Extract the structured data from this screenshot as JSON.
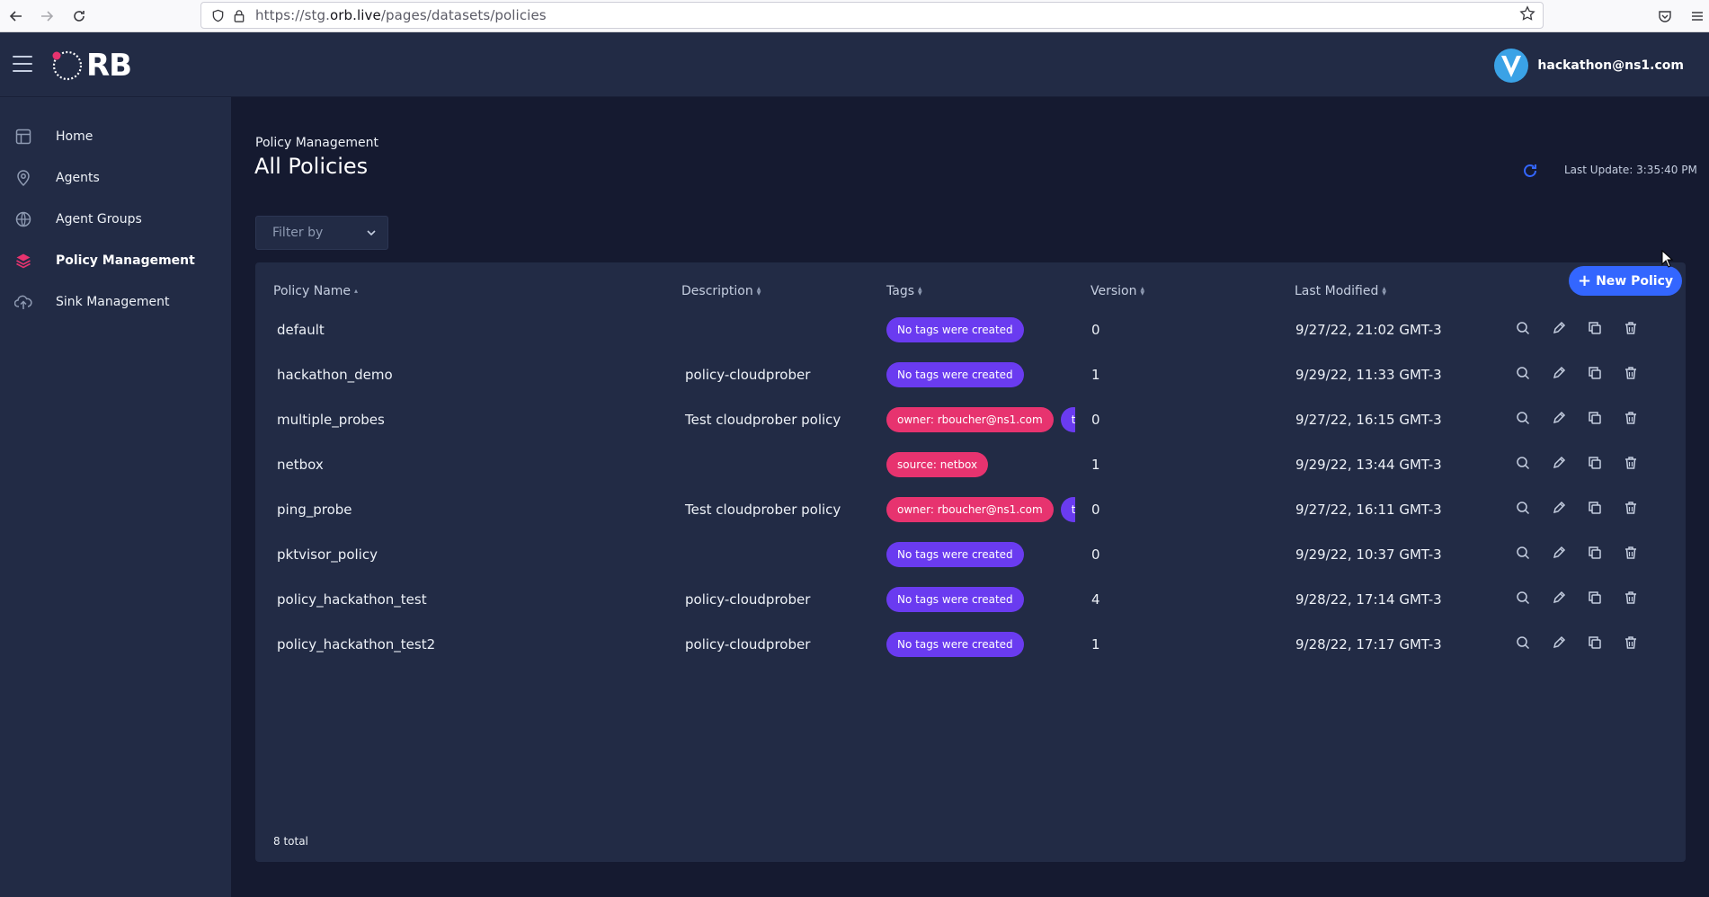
{
  "browser": {
    "url_prefix": "https://stg.",
    "url_host": "orb.live",
    "url_path": "/pages/datasets/policies"
  },
  "header": {
    "logo_text": "RB",
    "user_email": "hackathon@ns1.com"
  },
  "sidebar": {
    "items": [
      {
        "label": "Home",
        "icon": "layout-icon",
        "active": false
      },
      {
        "label": "Agents",
        "icon": "pin-icon",
        "active": false
      },
      {
        "label": "Agent Groups",
        "icon": "globe-icon",
        "active": false
      },
      {
        "label": "Policy Management",
        "icon": "layers-icon",
        "active": true
      },
      {
        "label": "Sink Management",
        "icon": "cloud-upload-icon",
        "active": false
      }
    ]
  },
  "page": {
    "breadcrumb": "Policy Management",
    "title": "All Policies",
    "last_update": "Last Update: 3:35:40 PM",
    "filter_placeholder": "Filter by",
    "new_policy_label": "New Policy",
    "total": "8 total"
  },
  "table": {
    "columns": [
      "Policy Name",
      "Description",
      "Tags",
      "Version",
      "Last Modified"
    ],
    "rows": [
      {
        "name": "default",
        "description": "",
        "tags": [
          {
            "text": "No tags were created",
            "color": "purple"
          }
        ],
        "version": "0",
        "modified": "9/27/22, 21:02 GMT-3"
      },
      {
        "name": "hackathon_demo",
        "description": "policy-cloudprober",
        "tags": [
          {
            "text": "No tags were created",
            "color": "purple"
          }
        ],
        "version": "1",
        "modified": "9/29/22, 11:33 GMT-3"
      },
      {
        "name": "multiple_probes",
        "description": "Test cloudprober policy",
        "tags": [
          {
            "text": "owner: rboucher@ns1.com",
            "color": "pink"
          },
          {
            "text": "t",
            "color": "purple"
          }
        ],
        "version": "0",
        "modified": "9/27/22, 16:15 GMT-3"
      },
      {
        "name": "netbox",
        "description": "",
        "tags": [
          {
            "text": "source: netbox",
            "color": "pink"
          }
        ],
        "version": "1",
        "modified": "9/29/22, 13:44 GMT-3"
      },
      {
        "name": "ping_probe",
        "description": "Test cloudprober policy",
        "tags": [
          {
            "text": "owner: rboucher@ns1.com",
            "color": "pink"
          },
          {
            "text": "t",
            "color": "purple"
          }
        ],
        "version": "0",
        "modified": "9/27/22, 16:11 GMT-3"
      },
      {
        "name": "pktvisor_policy",
        "description": "",
        "tags": [
          {
            "text": "No tags were created",
            "color": "purple"
          }
        ],
        "version": "0",
        "modified": "9/29/22, 10:37 GMT-3"
      },
      {
        "name": "policy_hackathon_test",
        "description": "policy-cloudprober",
        "tags": [
          {
            "text": "No tags were created",
            "color": "purple"
          }
        ],
        "version": "4",
        "modified": "9/28/22, 17:14 GMT-3"
      },
      {
        "name": "policy_hackathon_test2",
        "description": "policy-cloudprober",
        "tags": [
          {
            "text": "No tags were created",
            "color": "purple"
          }
        ],
        "version": "1",
        "modified": "9/28/22, 17:17 GMT-3"
      }
    ]
  },
  "colors": {
    "background": "#151a30",
    "panel": "#222b45",
    "primary": "#3366ff",
    "tag_purple": "#6a3bf0",
    "tag_pink": "#e7336f",
    "logo_dot": "#e7336f"
  }
}
